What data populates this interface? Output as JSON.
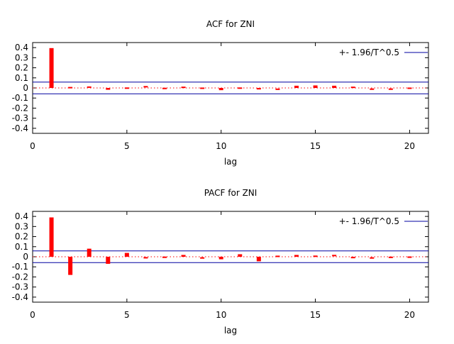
{
  "chart_data": [
    {
      "type": "bar",
      "title": "ACF for ZNI",
      "xlabel": "lag",
      "ylabel": "",
      "xlim": [
        0,
        21
      ],
      "ylim": [
        -0.45,
        0.45
      ],
      "x_ticks": [
        "0",
        "5",
        "10",
        "15",
        "20"
      ],
      "y_ticks": [
        "0.4",
        "0.3",
        "0.2",
        "0.1",
        "0",
        "-0.1",
        "-0.2",
        "-0.3",
        "-0.4"
      ],
      "grid": false,
      "legend_position": "top-right",
      "series": [
        {
          "name": "",
          "color": "#ff0000",
          "x": [
            1,
            2,
            3,
            4,
            5,
            6,
            7,
            8,
            9,
            10,
            11,
            12,
            13,
            14,
            15,
            16,
            17,
            18,
            19,
            20
          ],
          "values": [
            0.395,
            0.003,
            0.008,
            -0.018,
            -0.002,
            0.012,
            -0.005,
            0.006,
            -0.003,
            -0.022,
            -0.002,
            -0.015,
            -0.013,
            0.022,
            0.025,
            0.022,
            0.006,
            -0.012,
            -0.012,
            -0.003
          ]
        },
        {
          "name": "+- 1.96/T^0.5",
          "color": "#0000a0",
          "bands": [
            0.058,
            -0.058
          ]
        }
      ]
    },
    {
      "type": "bar",
      "title": "PACF for ZNI",
      "xlabel": "lag",
      "ylabel": "",
      "xlim": [
        0,
        21
      ],
      "ylim": [
        -0.45,
        0.45
      ],
      "x_ticks": [
        "0",
        "5",
        "10",
        "15",
        "20"
      ],
      "y_ticks": [
        "0.4",
        "0.3",
        "0.2",
        "0.1",
        "0",
        "-0.1",
        "-0.2",
        "-0.3",
        "-0.4"
      ],
      "grid": false,
      "legend_position": "top-right",
      "series": [
        {
          "name": "",
          "color": "#ff0000",
          "x": [
            1,
            2,
            3,
            4,
            5,
            6,
            7,
            8,
            9,
            10,
            11,
            12,
            13,
            14,
            15,
            16,
            17,
            18,
            19,
            20
          ],
          "values": [
            0.39,
            -0.18,
            0.08,
            -0.07,
            0.038,
            -0.01,
            -0.005,
            0.018,
            -0.012,
            -0.025,
            0.025,
            -0.045,
            0.004,
            0.018,
            0.005,
            0.012,
            -0.008,
            -0.012,
            -0.006,
            -0.004
          ]
        },
        {
          "name": "+- 1.96/T^0.5",
          "color": "#0000a0",
          "bands": [
            0.058,
            -0.058
          ]
        }
      ]
    }
  ]
}
